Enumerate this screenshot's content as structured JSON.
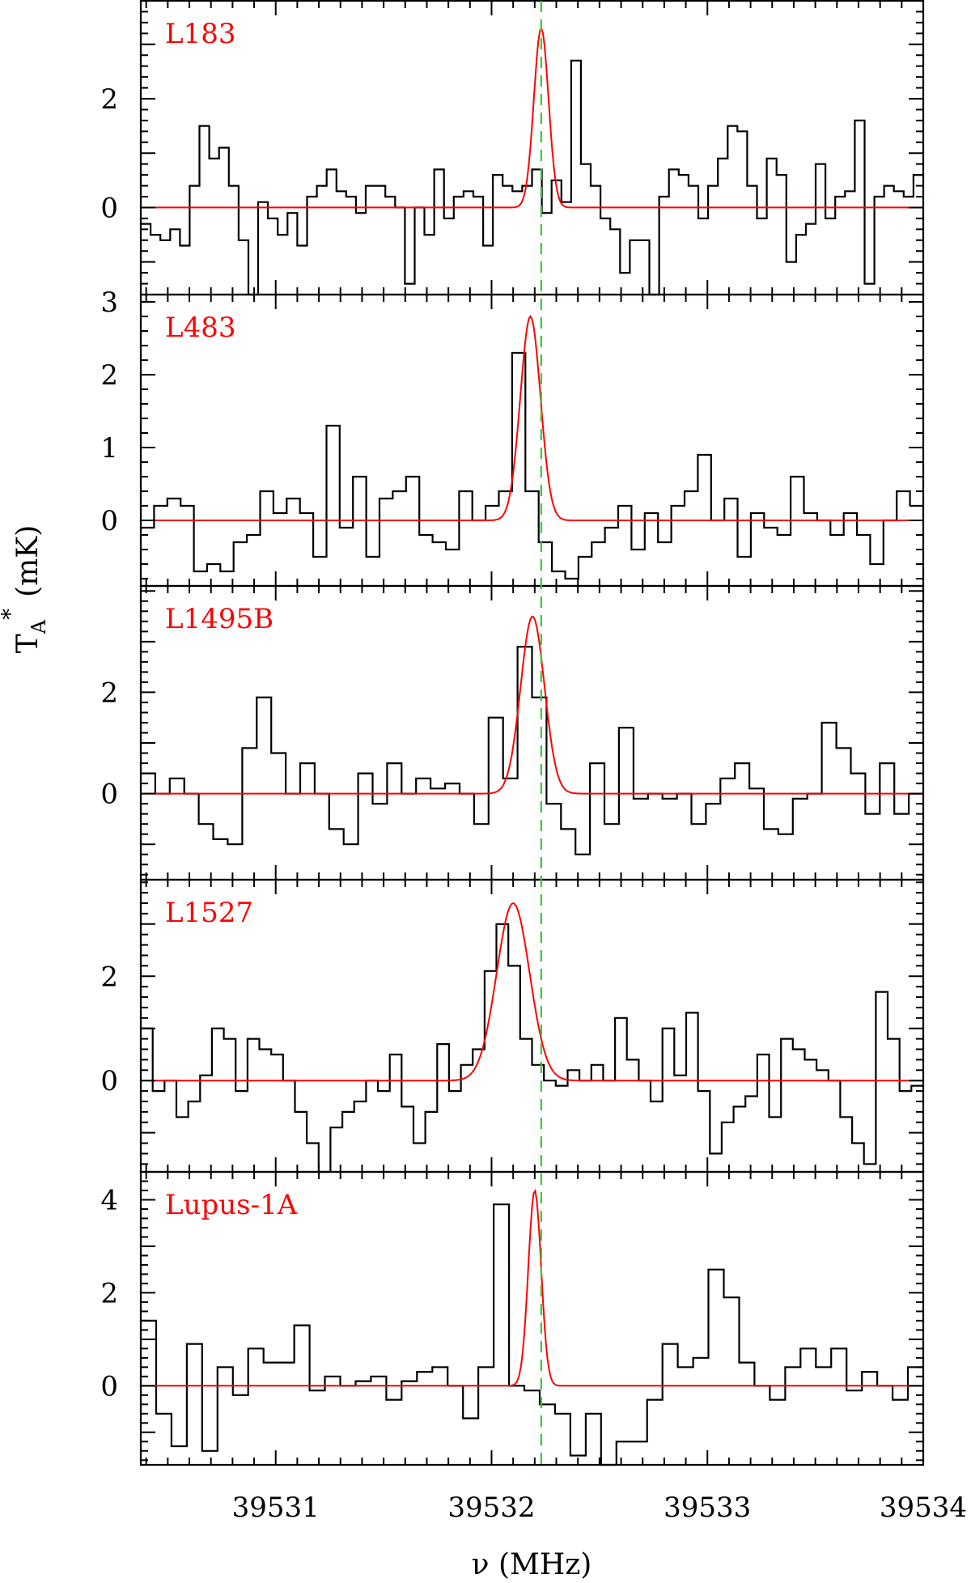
{
  "chart_data": {
    "type": "line",
    "xlabel": "ν (MHz)",
    "ylabel": "T_A^* (mK)",
    "ylabel_main": "T",
    "ylabel_sub": "A",
    "ylabel_sup": "*",
    "ylabel_unit": "(mK)",
    "xlim": [
      39530.375,
      39534.0
    ],
    "xticks": [
      39531,
      39532,
      39533,
      39534
    ],
    "reference_line": {
      "x": 39532.23,
      "style": "dashed",
      "color": "#33cc33"
    },
    "colors": {
      "spectrum": "#000000",
      "fit": "#ff0000",
      "reference": "#33cc33"
    },
    "grid": false,
    "panels": [
      {
        "label": "L183",
        "ylim": [
          -1.6,
          3.8
        ],
        "yticks": [
          0,
          2
        ],
        "yticklabels": [
          "0",
          "2"
        ],
        "fit": {
          "center": 39532.23,
          "peak": 3.3,
          "fwhm": 0.08
        },
        "spectrum": [
          -0.3,
          -0.5,
          -0.6,
          -0.4,
          -0.7,
          0.4,
          1.5,
          0.9,
          1.1,
          0.4,
          -0.6,
          -1.8,
          0.1,
          -0.2,
          -0.5,
          -0.1,
          -0.7,
          0.2,
          0.4,
          0.7,
          0.3,
          0.2,
          -0.1,
          0.4,
          0.4,
          0.2,
          0.0,
          -1.4,
          0.0,
          -0.5,
          0.7,
          -0.2,
          0.2,
          0.3,
          0.2,
          -0.7,
          0.6,
          0.4,
          0.3,
          0.4,
          0.7,
          -0.1,
          0.5,
          0.1,
          2.7,
          0.8,
          0.4,
          -0.2,
          -0.4,
          -1.2,
          -0.6,
          -0.6,
          -1.6,
          0.2,
          0.7,
          0.6,
          0.4,
          -0.2,
          0.4,
          0.9,
          1.5,
          1.4,
          0.4,
          -0.2,
          0.9,
          0.6,
          -1.0,
          -0.5,
          -0.3,
          0.8,
          -0.2,
          0.2,
          0.3,
          1.6,
          -1.4,
          0.2,
          0.4,
          0.3,
          0.2,
          0.6
        ]
      },
      {
        "label": "L483",
        "ylim": [
          -0.9,
          3.1
        ],
        "yticks": [
          0,
          1,
          2,
          3
        ],
        "yticklabels": [
          "0",
          "1",
          "2",
          "3"
        ],
        "fit": {
          "center": 39532.18,
          "peak": 2.8,
          "fwhm": 0.11
        },
        "spectrum": [
          -0.1,
          0.2,
          0.3,
          0.2,
          -0.7,
          -0.6,
          -0.7,
          -0.3,
          -0.2,
          0.4,
          0.1,
          0.3,
          0.1,
          -0.5,
          1.3,
          -0.1,
          0.6,
          -0.5,
          0.3,
          0.4,
          0.6,
          -0.2,
          -0.3,
          -0.4,
          0.4,
          0.0,
          0.2,
          0.4,
          2.3,
          0.4,
          -0.3,
          -0.7,
          -0.8,
          -0.5,
          -0.3,
          -0.1,
          0.2,
          -0.4,
          0.1,
          -0.3,
          0.2,
          0.4,
          0.9,
          0.0,
          0.3,
          -0.5,
          0.1,
          -0.1,
          -0.2,
          0.6,
          0.1,
          0.0,
          -0.2,
          0.1,
          -0.2,
          -0.6,
          0.0,
          0.4,
          0.2
        ]
      },
      {
        "label": "L1495B",
        "ylim": [
          -1.7,
          4.1
        ],
        "yticks": [
          0,
          2
        ],
        "yticklabels": [
          "0",
          "2"
        ],
        "fit": {
          "center": 39532.19,
          "peak": 3.5,
          "fwhm": 0.13
        },
        "spectrum": [
          0.4,
          0.0,
          0.3,
          0.0,
          -0.6,
          -0.9,
          -1.0,
          0.9,
          1.9,
          0.8,
          0.0,
          0.6,
          0.0,
          -0.7,
          -1.0,
          0.4,
          -0.2,
          0.6,
          0.0,
          0.3,
          0.1,
          0.2,
          0.0,
          -0.6,
          1.5,
          0.3,
          2.9,
          1.9,
          -0.2,
          -0.7,
          -1.2,
          0.6,
          -0.6,
          1.3,
          -0.1,
          0.0,
          -0.1,
          0.0,
          -0.6,
          -0.2,
          0.3,
          0.6,
          0.1,
          -0.7,
          -0.8,
          -0.1,
          0.0,
          1.4,
          0.9,
          0.4,
          -0.4,
          0.6,
          -0.4,
          0.0
        ]
      },
      {
        "label": "L1527",
        "ylim": [
          -1.75,
          3.85
        ],
        "yticks": [
          0,
          2
        ],
        "yticklabels": [
          "0",
          "2"
        ],
        "fit": {
          "center": 39532.1,
          "peak": 3.4,
          "fwhm": 0.18
        },
        "spectrum": [
          1.0,
          -0.2,
          0.0,
          -0.7,
          -0.4,
          0.1,
          1.0,
          0.8,
          -0.2,
          0.8,
          0.6,
          0.5,
          0.0,
          -0.6,
          -1.2,
          -1.8,
          -0.9,
          -0.6,
          -0.4,
          0.0,
          -0.2,
          0.5,
          -0.5,
          -1.2,
          -0.6,
          0.7,
          -0.2,
          0.3,
          0.6,
          2.1,
          3.0,
          2.2,
          0.8,
          0.3,
          0.0,
          -0.1,
          0.2,
          0.0,
          0.3,
          0.0,
          1.2,
          0.4,
          0.0,
          -0.4,
          1.0,
          0.1,
          1.3,
          -0.2,
          -1.4,
          -0.8,
          -0.5,
          -0.3,
          0.5,
          -0.7,
          0.8,
          0.6,
          0.4,
          0.2,
          0.0,
          -0.7,
          -1.2,
          -1.6,
          1.7,
          0.8,
          -0.2,
          -0.1
        ]
      },
      {
        "label": "Lupus-1A",
        "ylim": [
          -1.7,
          4.6
        ],
        "yticks": [
          0,
          2,
          4
        ],
        "yticklabels": [
          "0",
          "2",
          "4"
        ],
        "fit": {
          "center": 39532.2,
          "peak": 4.2,
          "fwhm": 0.07
        },
        "spectrum": [
          1.4,
          -0.6,
          -1.3,
          0.9,
          -1.4,
          0.4,
          -0.2,
          0.8,
          0.5,
          0.5,
          1.3,
          -0.1,
          0.2,
          0.0,
          0.1,
          0.2,
          -0.3,
          0.1,
          0.3,
          0.4,
          0.0,
          -0.7,
          0.4,
          3.9,
          0.0,
          -0.1,
          -0.4,
          -0.6,
          -1.5,
          -0.6,
          -1.7,
          -1.2,
          -1.2,
          -0.3,
          0.9,
          0.4,
          0.6,
          2.5,
          1.9,
          0.5,
          0.0,
          -0.3,
          0.4,
          0.8,
          0.4,
          0.8,
          -0.1,
          0.3,
          0.0,
          -0.3,
          0.4
        ]
      }
    ]
  }
}
